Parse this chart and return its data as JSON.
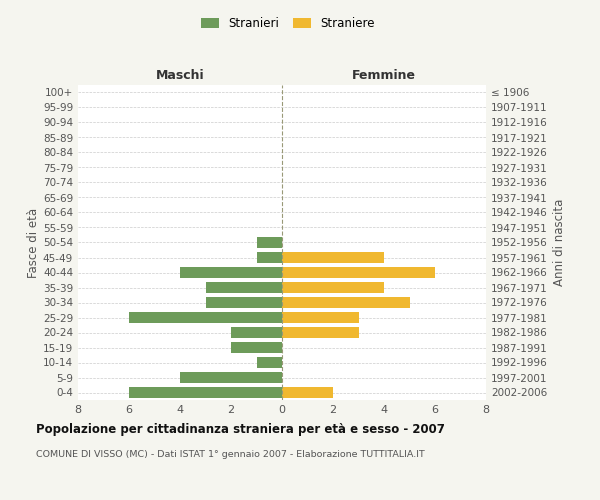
{
  "age_groups": [
    "0-4",
    "5-9",
    "10-14",
    "15-19",
    "20-24",
    "25-29",
    "30-34",
    "35-39",
    "40-44",
    "45-49",
    "50-54",
    "55-59",
    "60-64",
    "65-69",
    "70-74",
    "75-79",
    "80-84",
    "85-89",
    "90-94",
    "95-99",
    "100+"
  ],
  "birth_years": [
    "2002-2006",
    "1997-2001",
    "1992-1996",
    "1987-1991",
    "1982-1986",
    "1977-1981",
    "1972-1976",
    "1967-1971",
    "1962-1966",
    "1957-1961",
    "1952-1956",
    "1947-1951",
    "1942-1946",
    "1937-1941",
    "1932-1936",
    "1927-1931",
    "1922-1926",
    "1917-1921",
    "1912-1916",
    "1907-1911",
    "≤ 1906"
  ],
  "maschi": [
    6,
    4,
    1,
    2,
    2,
    6,
    3,
    3,
    4,
    1,
    1,
    0,
    0,
    0,
    0,
    0,
    0,
    0,
    0,
    0,
    0
  ],
  "femmine": [
    2,
    0,
    0,
    0,
    3,
    3,
    5,
    4,
    6,
    4,
    0,
    0,
    0,
    0,
    0,
    0,
    0,
    0,
    0,
    0,
    0
  ],
  "male_color": "#6d9b5a",
  "female_color": "#f0b830",
  "title": "Popolazione per cittadinanza straniera per età e sesso - 2007",
  "subtitle": "COMUNE DI VISSO (MC) - Dati ISTAT 1° gennaio 2007 - Elaborazione TUTTITALIA.IT",
  "ylabel_left": "Fasce di età",
  "ylabel_right": "Anni di nascita",
  "xlabel_left": "Maschi",
  "xlabel_right": "Femmine",
  "legend_male": "Stranieri",
  "legend_female": "Straniere",
  "xlim": 8,
  "bg_color": "#f5f5ef",
  "plot_bg": "#ffffff",
  "grid_color": "#cccccc"
}
